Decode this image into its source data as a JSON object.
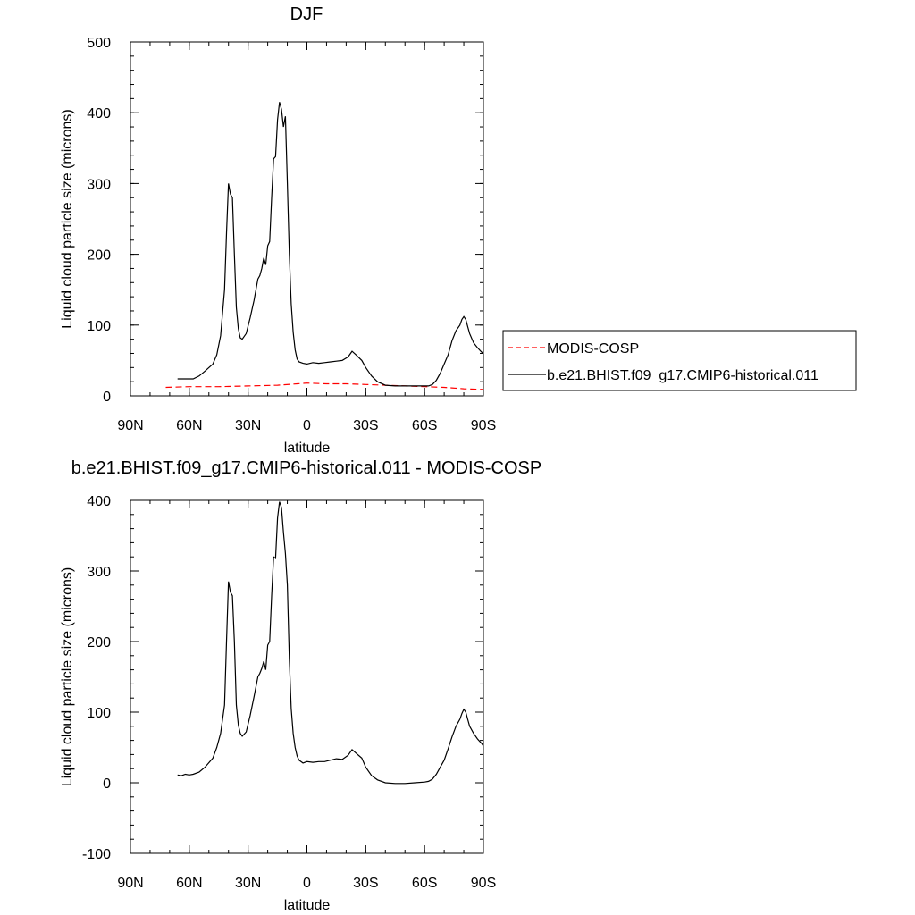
{
  "chart_data": [
    {
      "type": "line",
      "title": "DJF",
      "xlabel": "latitude",
      "ylabel": "Liquid cloud particle size (microns)",
      "xlim": [
        90,
        -90
      ],
      "ylim": [
        0,
        500
      ],
      "x_tick_values": [
        90,
        60,
        30,
        0,
        -30,
        -60,
        -90
      ],
      "x_tick_labels": [
        "90N",
        "60N",
        "30N",
        "0",
        "30S",
        "60S",
        "90S"
      ],
      "y_tick_values": [
        0,
        100,
        200,
        300,
        400,
        500
      ],
      "y_tick_labels": [
        "0",
        "100",
        "200",
        "300",
        "400",
        "500"
      ],
      "legend": "right",
      "series": [
        {
          "name": "MODIS-COSP",
          "color": "#ff0000",
          "dash": "dashed",
          "x": [
            72,
            60,
            45,
            30,
            15,
            5,
            0,
            -10,
            -20,
            -30,
            -40,
            -50,
            -60,
            -70,
            -80,
            -90
          ],
          "y": [
            12,
            13,
            13,
            14,
            15,
            17,
            18,
            17,
            17,
            16,
            15,
            14,
            13,
            12,
            10,
            9
          ]
        },
        {
          "name": "b.e21.BHIST.f09_g17.CMIP6-historical.011",
          "color": "#000000",
          "dash": "solid",
          "x": [
            66,
            63,
            58,
            55,
            52,
            48,
            46,
            44,
            42,
            41,
            40,
            39,
            38,
            37,
            36,
            35,
            34,
            33,
            31,
            29,
            27,
            25,
            24,
            23,
            22,
            21,
            20,
            19,
            18,
            17,
            16,
            15,
            14,
            13,
            12,
            11,
            10,
            9,
            8,
            7,
            6,
            5,
            4,
            2,
            0,
            -3,
            -6,
            -9,
            -12,
            -15,
            -18,
            -21,
            -23,
            -25,
            -28,
            -30,
            -33,
            -36,
            -40,
            -45,
            -50,
            -55,
            -60,
            -62,
            -64,
            -66,
            -68,
            -70,
            -72,
            -74,
            -76,
            -78,
            -79,
            -80,
            -81,
            -82,
            -83,
            -85,
            -87,
            -89,
            -90
          ],
          "y": [
            24,
            24,
            24,
            28,
            35,
            45,
            58,
            85,
            150,
            230,
            300,
            285,
            280,
            200,
            125,
            95,
            82,
            80,
            88,
            110,
            135,
            165,
            170,
            180,
            195,
            185,
            212,
            218,
            280,
            335,
            338,
            390,
            415,
            405,
            380,
            395,
            300,
            200,
            130,
            90,
            65,
            52,
            48,
            46,
            45,
            47,
            46,
            47,
            48,
            49,
            50,
            55,
            63,
            58,
            50,
            40,
            28,
            20,
            15,
            14,
            14,
            14,
            14,
            14,
            16,
            22,
            32,
            45,
            58,
            78,
            92,
            100,
            108,
            112,
            108,
            98,
            88,
            75,
            68,
            62,
            60
          ]
        }
      ]
    },
    {
      "type": "line",
      "title": "b.e21.BHIST.f09_g17.CMIP6-historical.011 - MODIS-COSP",
      "xlabel": "latitude",
      "ylabel": "Liquid cloud particle size (microns)",
      "xlim": [
        90,
        -90
      ],
      "ylim": [
        -100,
        400
      ],
      "x_tick_values": [
        90,
        60,
        30,
        0,
        -30,
        -60,
        -90
      ],
      "x_tick_labels": [
        "90N",
        "60N",
        "30N",
        "0",
        "30S",
        "60S",
        "90S"
      ],
      "y_tick_values": [
        -100,
        0,
        100,
        200,
        300,
        400
      ],
      "y_tick_labels": [
        "-100",
        "0",
        "100",
        "200",
        "300",
        "400"
      ],
      "series": [
        {
          "color": "#000000",
          "dash": "solid",
          "x": [
            66,
            64,
            62,
            60,
            58,
            55,
            52,
            48,
            46,
            44,
            42,
            41,
            40,
            39,
            38,
            37,
            36,
            35,
            34,
            33,
            31,
            29,
            27,
            25,
            24,
            23,
            22,
            21,
            20,
            19,
            18,
            17,
            16,
            15,
            14,
            13,
            12,
            11,
            10,
            9,
            8,
            7,
            6,
            5,
            4,
            2,
            0,
            -3,
            -6,
            -9,
            -12,
            -15,
            -18,
            -21,
            -23,
            -25,
            -28,
            -30,
            -33,
            -36,
            -40,
            -45,
            -50,
            -55,
            -60,
            -62,
            -64,
            -66,
            -68,
            -70,
            -72,
            -74,
            -76,
            -78,
            -79,
            -80,
            -81,
            -82,
            -83,
            -85,
            -87,
            -89,
            -90
          ],
          "y": [
            11,
            10,
            12,
            11,
            12,
            15,
            22,
            35,
            50,
            70,
            110,
            200,
            285,
            270,
            265,
            200,
            110,
            82,
            70,
            66,
            72,
            95,
            122,
            150,
            155,
            162,
            172,
            160,
            195,
            200,
            265,
            320,
            318,
            375,
            398,
            390,
            355,
            325,
            280,
            175,
            105,
            70,
            50,
            38,
            32,
            28,
            30,
            29,
            30,
            30,
            32,
            34,
            33,
            39,
            47,
            42,
            35,
            22,
            10,
            4,
            0,
            -1,
            -1,
            0,
            1,
            2,
            5,
            12,
            22,
            32,
            48,
            65,
            80,
            90,
            98,
            104,
            100,
            90,
            80,
            70,
            62,
            56,
            52
          ]
        }
      ]
    }
  ]
}
